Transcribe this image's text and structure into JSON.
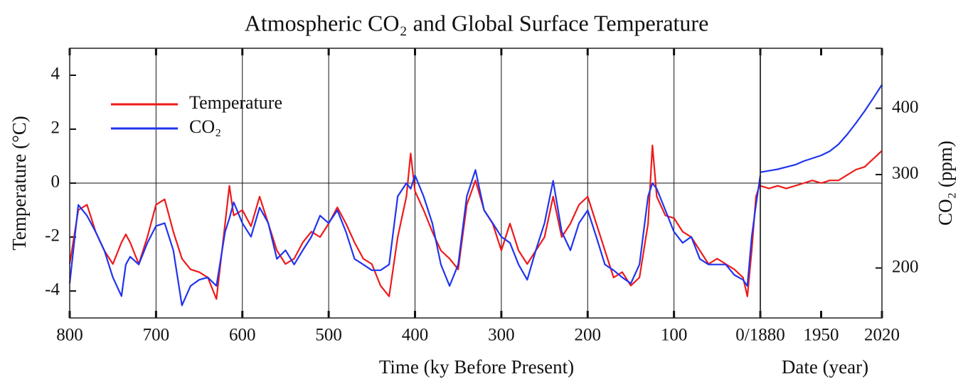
{
  "chart_data": [
    {
      "type": "line",
      "title": "Atmospheric CO₂ and Global Surface Temperature",
      "xlabel": "Time (ky Before Present)",
      "ylabel": "Temperature (°C)",
      "x": [
        800,
        790,
        780,
        770,
        760,
        750,
        740,
        735,
        730,
        720,
        710,
        700,
        690,
        680,
        670,
        660,
        650,
        640,
        630,
        620,
        615,
        610,
        600,
        590,
        580,
        570,
        560,
        550,
        540,
        530,
        520,
        510,
        500,
        490,
        480,
        470,
        460,
        450,
        440,
        430,
        420,
        410,
        405,
        400,
        390,
        380,
        370,
        360,
        350,
        340,
        330,
        320,
        310,
        300,
        290,
        280,
        270,
        260,
        250,
        240,
        230,
        220,
        210,
        200,
        190,
        180,
        170,
        160,
        150,
        140,
        130,
        125,
        120,
        110,
        100,
        90,
        80,
        70,
        60,
        50,
        40,
        30,
        20,
        15,
        10,
        5,
        0
      ],
      "xlim": [
        800,
        0
      ],
      "xticks": [
        800,
        700,
        600,
        500,
        400,
        300,
        200,
        100,
        {
          "value": 0,
          "label": "0/1880"
        }
      ],
      "ylim": [
        -5,
        5
      ],
      "yticks": [
        -4,
        -2,
        0,
        2,
        4
      ],
      "y2lim": [
        161,
        519
      ],
      "y2scale": "log",
      "xgrid": true,
      "zero_line": true,
      "legend": "upper left",
      "series": [
        {
          "name": "Temperature",
          "color": "#ee1a1a",
          "values": [
            -3.0,
            -1.0,
            -0.8,
            -1.8,
            -2.5,
            -3.0,
            -2.2,
            -1.9,
            -2.2,
            -3.0,
            -2.0,
            -0.8,
            -0.6,
            -1.8,
            -2.8,
            -3.2,
            -3.3,
            -3.5,
            -4.3,
            -1.5,
            -0.1,
            -1.2,
            -1.0,
            -1.6,
            -0.5,
            -1.5,
            -2.5,
            -3.0,
            -2.8,
            -2.2,
            -1.8,
            -2.0,
            -1.5,
            -0.9,
            -1.5,
            -2.2,
            -2.8,
            -3.0,
            -3.8,
            -4.2,
            -2.0,
            -0.5,
            1.1,
            -0.3,
            -1.0,
            -1.8,
            -2.5,
            -2.8,
            -3.2,
            -0.8,
            0.1,
            -1.0,
            -1.5,
            -2.5,
            -1.5,
            -2.5,
            -3.0,
            -2.5,
            -2.0,
            -0.5,
            -2.0,
            -1.5,
            -0.8,
            -0.5,
            -1.5,
            -2.5,
            -3.5,
            -3.3,
            -3.8,
            -3.5,
            -1.5,
            1.4,
            -0.5,
            -1.2,
            -1.3,
            -1.8,
            -2.0,
            -2.5,
            -3.0,
            -2.8,
            -3.0,
            -3.2,
            -3.5,
            -4.2,
            -2.5,
            -0.5,
            0.0
          ]
        },
        {
          "name": "CO₂",
          "color": "#2035ee",
          "axis": "y2",
          "values": [
            187,
            263,
            251,
            234,
            216,
            192,
            177,
            203,
            210,
            203,
            223,
            240,
            243,
            216,
            170,
            185,
            190,
            192,
            185,
            234,
            248,
            266,
            243,
            229,
            260,
            243,
            208,
            216,
            203,
            216,
            229,
            251,
            243,
            257,
            234,
            208,
            203,
            198,
            198,
            203,
            273,
            289,
            282,
            299,
            273,
            243,
            203,
            185,
            203,
            273,
            306,
            257,
            243,
            229,
            223,
            203,
            190,
            216,
            243,
            292,
            234,
            216,
            243,
            257,
            229,
            203,
            198,
            192,
            187,
            203,
            273,
            289,
            282,
            257,
            234,
            223,
            229,
            208,
            203,
            203,
            203,
            194,
            190,
            185,
            229,
            263,
            299
          ]
        }
      ]
    },
    {
      "type": "line",
      "xlabel": "Date (year)",
      "y2label": "CO₂ (ppm)",
      "x": [
        1880,
        1890,
        1900,
        1910,
        1920,
        1930,
        1940,
        1950,
        1960,
        1970,
        1980,
        1990,
        2000,
        2010,
        2020
      ],
      "xlim": [
        1880,
        2020
      ],
      "xticks": [
        1950,
        2020
      ],
      "ylim": [
        -5,
        5
      ],
      "y2lim": [
        161,
        519
      ],
      "y2ticks": [
        200,
        300,
        400
      ],
      "y2scale": "log",
      "zero_line": true,
      "series": [
        {
          "color": "#ee1a1a",
          "values": [
            -0.1,
            -0.2,
            -0.1,
            -0.2,
            -0.1,
            0.0,
            0.1,
            0.0,
            0.1,
            0.1,
            0.3,
            0.5,
            0.6,
            0.9,
            1.2
          ]
        },
        {
          "color": "#2035ee",
          "axis": "y2",
          "values": [
            303,
            305,
            307,
            310,
            313,
            318,
            322,
            326,
            332,
            342,
            357,
            375,
            395,
            418,
            443
          ]
        }
      ]
    }
  ]
}
